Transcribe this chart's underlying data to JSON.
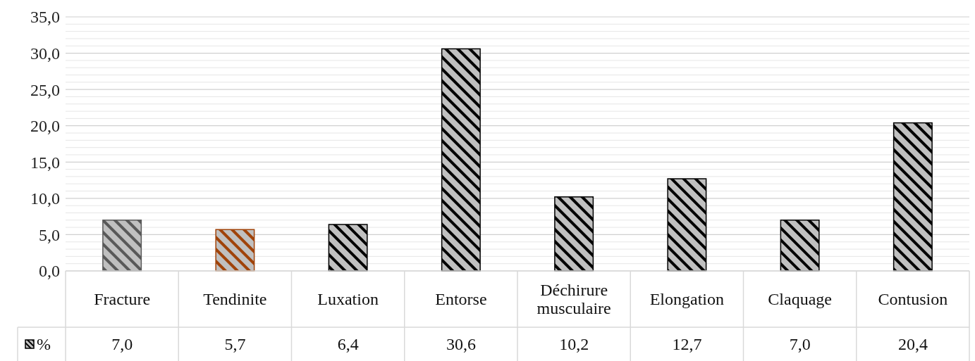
{
  "chart_data": {
    "type": "bar",
    "categories": [
      "Fracture",
      "Tendinite",
      "Luxation",
      "Entorse",
      "Déchirure musculaire",
      "Elongation",
      "Claquage",
      "Contusion"
    ],
    "series": [
      {
        "name": "%",
        "color": "#000000",
        "colors": [
          "#595959",
          "#a0430a",
          "#000000",
          "#000000",
          "#000000",
          "#000000",
          "#000000",
          "#000000"
        ],
        "values": [
          7.0,
          5.7,
          6.4,
          30.6,
          10.2,
          12.7,
          7.0,
          20.4
        ],
        "value_labels": [
          "7,0",
          "5,7",
          "6,4",
          "30,6",
          "10,2",
          "12,7",
          "7,0",
          "20,4"
        ]
      }
    ],
    "ylim": [
      0,
      35
    ],
    "yticks": [
      {
        "value": 0,
        "label": "0,0"
      },
      {
        "value": 5,
        "label": "5,0"
      },
      {
        "value": 10,
        "label": "10,0"
      },
      {
        "value": 15,
        "label": "15,0"
      },
      {
        "value": 20,
        "label": "20,0"
      },
      {
        "value": 25,
        "label": "25,0"
      },
      {
        "value": 30,
        "label": "30,0"
      },
      {
        "value": 35,
        "label": "35,0"
      }
    ],
    "grid": "y",
    "legend": "bottom left"
  }
}
